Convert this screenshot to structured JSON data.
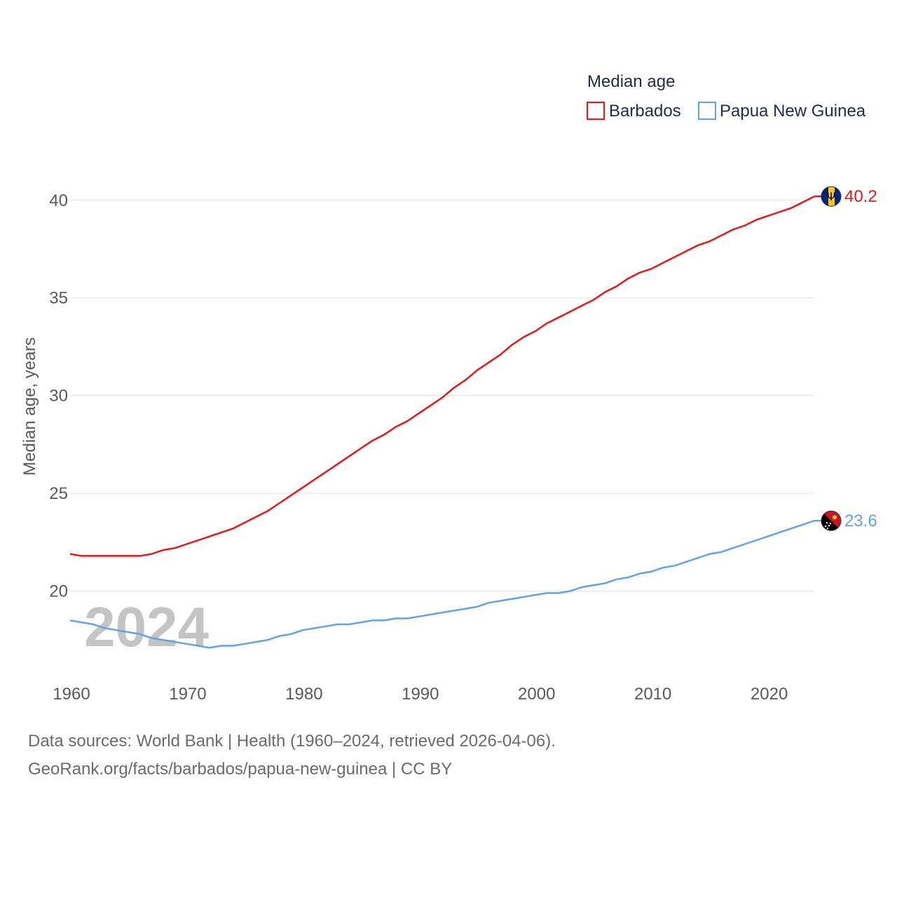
{
  "chart_data": {
    "type": "line",
    "legend_title": "Median age",
    "ylabel": "Median age, years",
    "xlabel": "",
    "xlim": [
      1960,
      2024
    ],
    "ylim": [
      16,
      42
    ],
    "x_ticks": [
      1960,
      1970,
      1980,
      1990,
      2000,
      2010,
      2020
    ],
    "y_ticks": [
      20,
      25,
      30,
      35,
      40
    ],
    "year_watermark": "2024",
    "legend_position": "top-right",
    "x": [
      1960,
      1961,
      1962,
      1963,
      1964,
      1965,
      1966,
      1967,
      1968,
      1969,
      1970,
      1971,
      1972,
      1973,
      1974,
      1975,
      1976,
      1977,
      1978,
      1979,
      1980,
      1981,
      1982,
      1983,
      1984,
      1985,
      1986,
      1987,
      1988,
      1989,
      1990,
      1991,
      1992,
      1993,
      1994,
      1995,
      1996,
      1997,
      1998,
      1999,
      2000,
      2001,
      2002,
      2003,
      2004,
      2005,
      2006,
      2007,
      2008,
      2009,
      2010,
      2011,
      2012,
      2013,
      2014,
      2015,
      2016,
      2017,
      2018,
      2019,
      2020,
      2021,
      2022,
      2023,
      2024
    ],
    "series": [
      {
        "name": "Barbados",
        "color": "#e31a1c",
        "end_label": "40.2",
        "flag": "flag-barbados",
        "values": [
          21.9,
          21.8,
          21.8,
          21.8,
          21.8,
          21.8,
          21.8,
          21.9,
          22.1,
          22.2,
          22.4,
          22.6,
          22.8,
          23.0,
          23.2,
          23.5,
          23.8,
          24.1,
          24.5,
          24.9,
          25.3,
          25.7,
          26.1,
          26.5,
          26.9,
          27.3,
          27.7,
          28.0,
          28.4,
          28.7,
          29.1,
          29.5,
          29.9,
          30.4,
          30.8,
          31.3,
          31.7,
          32.1,
          32.6,
          33.0,
          33.3,
          33.7,
          34.0,
          34.3,
          34.6,
          34.9,
          35.3,
          35.6,
          36.0,
          36.3,
          36.5,
          36.8,
          37.1,
          37.4,
          37.7,
          37.9,
          38.2,
          38.5,
          38.7,
          39.0,
          39.2,
          39.4,
          39.6,
          39.9,
          40.2
        ]
      },
      {
        "name": "Papua New Guinea",
        "color": "#5fa4e4",
        "end_label": "23.6",
        "flag": "flag-papua-new-guinea",
        "values": [
          18.5,
          18.4,
          18.3,
          18.1,
          18.0,
          17.9,
          17.8,
          17.6,
          17.5,
          17.4,
          17.3,
          17.2,
          17.1,
          17.2,
          17.2,
          17.3,
          17.4,
          17.5,
          17.7,
          17.8,
          18.0,
          18.1,
          18.2,
          18.3,
          18.3,
          18.4,
          18.5,
          18.5,
          18.6,
          18.6,
          18.7,
          18.8,
          18.9,
          19.0,
          19.1,
          19.2,
          19.4,
          19.5,
          19.6,
          19.7,
          19.8,
          19.9,
          19.9,
          20.0,
          20.2,
          20.3,
          20.4,
          20.6,
          20.7,
          20.9,
          21.0,
          21.2,
          21.3,
          21.5,
          21.7,
          21.9,
          22.0,
          22.2,
          22.4,
          22.6,
          22.8,
          23.0,
          23.2,
          23.4,
          23.6
        ]
      }
    ]
  },
  "footer": {
    "source": "Data sources: World Bank | Health (1960–2024, retrieved 2026-04-06).",
    "link": "GeoRank.org/facts/barbados/papua-new-guinea | CC BY"
  }
}
